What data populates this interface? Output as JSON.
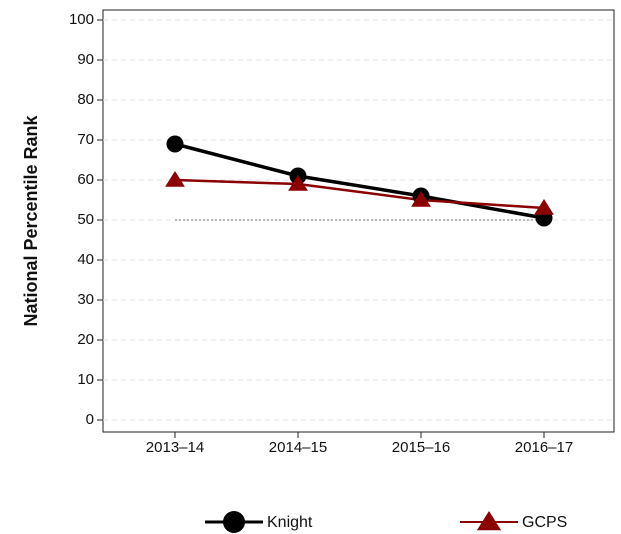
{
  "chart_data": {
    "type": "line",
    "y_label": "National Percentile Rank",
    "categories": [
      "2013–14",
      "2014–15",
      "2015–16",
      "2016–17"
    ],
    "series": [
      {
        "name": "Knight",
        "color": "#000000",
        "marker": "circle",
        "values": [
          69,
          61,
          56,
          50.5
        ]
      },
      {
        "name": "GCPS",
        "color": "#8b0000",
        "marker": "triangle",
        "values": [
          60,
          59,
          55,
          53
        ]
      }
    ],
    "reference_line": 50,
    "ylim": [
      -3,
      102.5
    ],
    "yticks": [
      0,
      10,
      20,
      30,
      40,
      50,
      60,
      70,
      80,
      90,
      100
    ],
    "grid": true,
    "legend": "bottom"
  }
}
